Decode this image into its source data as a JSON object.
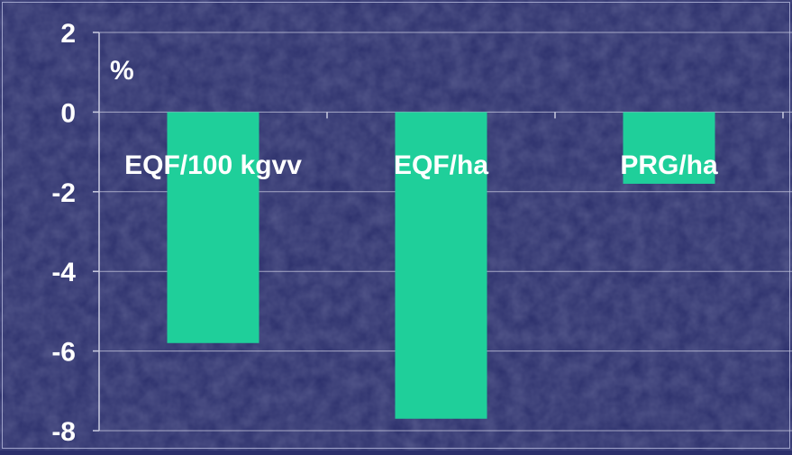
{
  "chart_data": {
    "type": "bar",
    "unit_label": "%",
    "categories": [
      "EQF/100 kgvv",
      "EQF/ha",
      "PRG/ha"
    ],
    "values": [
      -5.8,
      -7.7,
      -1.8
    ],
    "ylim": [
      -8,
      2
    ],
    "yticks": [
      "2",
      "0",
      "-2",
      "-4",
      "-6",
      "-8"
    ],
    "ytick_values": [
      2,
      0,
      -2,
      -4,
      -6,
      -8
    ],
    "grid": true,
    "legend": "none"
  },
  "colors": {
    "background": "#2b2f6b",
    "bar": "#1fcf9a",
    "grid": "#c9cbe0",
    "text": "#ffffff"
  }
}
